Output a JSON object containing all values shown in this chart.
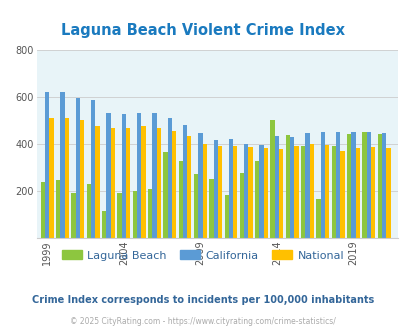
{
  "title": "Laguna Beach Violent Crime Index",
  "title_color": "#1a7abf",
  "subtitle": "Crime Index corresponds to incidents per 100,000 inhabitants",
  "subtitle_color": "#336699",
  "footer": "© 2025 CityRating.com - https://www.cityrating.com/crime-statistics/",
  "footer_color": "#aaaaaa",
  "fig_bg_color": "#ffffff",
  "plot_bg_color": "#e8f4f8",
  "years": [
    1999,
    2000,
    2001,
    2002,
    2003,
    2004,
    2005,
    2006,
    2007,
    2008,
    2009,
    2010,
    2011,
    2012,
    2013,
    2014,
    2015,
    2016,
    2017,
    2018,
    2019,
    2020,
    2021
  ],
  "laguna_beach": [
    235,
    245,
    190,
    230,
    115,
    190,
    200,
    205,
    365,
    325,
    270,
    250,
    180,
    275,
    325,
    500,
    435,
    390,
    165,
    390,
    440,
    450,
    440
  ],
  "california": [
    620,
    620,
    595,
    585,
    530,
    525,
    530,
    530,
    510,
    480,
    445,
    415,
    420,
    400,
    395,
    430,
    428,
    445,
    450,
    450,
    448,
    450,
    445
  ],
  "national": [
    510,
    510,
    500,
    475,
    465,
    465,
    475,
    465,
    455,
    430,
    400,
    390,
    390,
    385,
    380,
    375,
    390,
    400,
    395,
    370,
    380,
    385,
    380
  ],
  "laguna_color": "#8dc63f",
  "california_color": "#5b9bd5",
  "national_color": "#ffc000",
  "ylim": [
    0,
    800
  ],
  "yticks": [
    200,
    400,
    600,
    800
  ],
  "xtick_years": [
    1999,
    2004,
    2009,
    2014,
    2019
  ],
  "xtick_labels": [
    "1999",
    "2004",
    "2009",
    "2014",
    "2019"
  ],
  "grid_color": "#cccccc",
  "bar_width": 0.28
}
